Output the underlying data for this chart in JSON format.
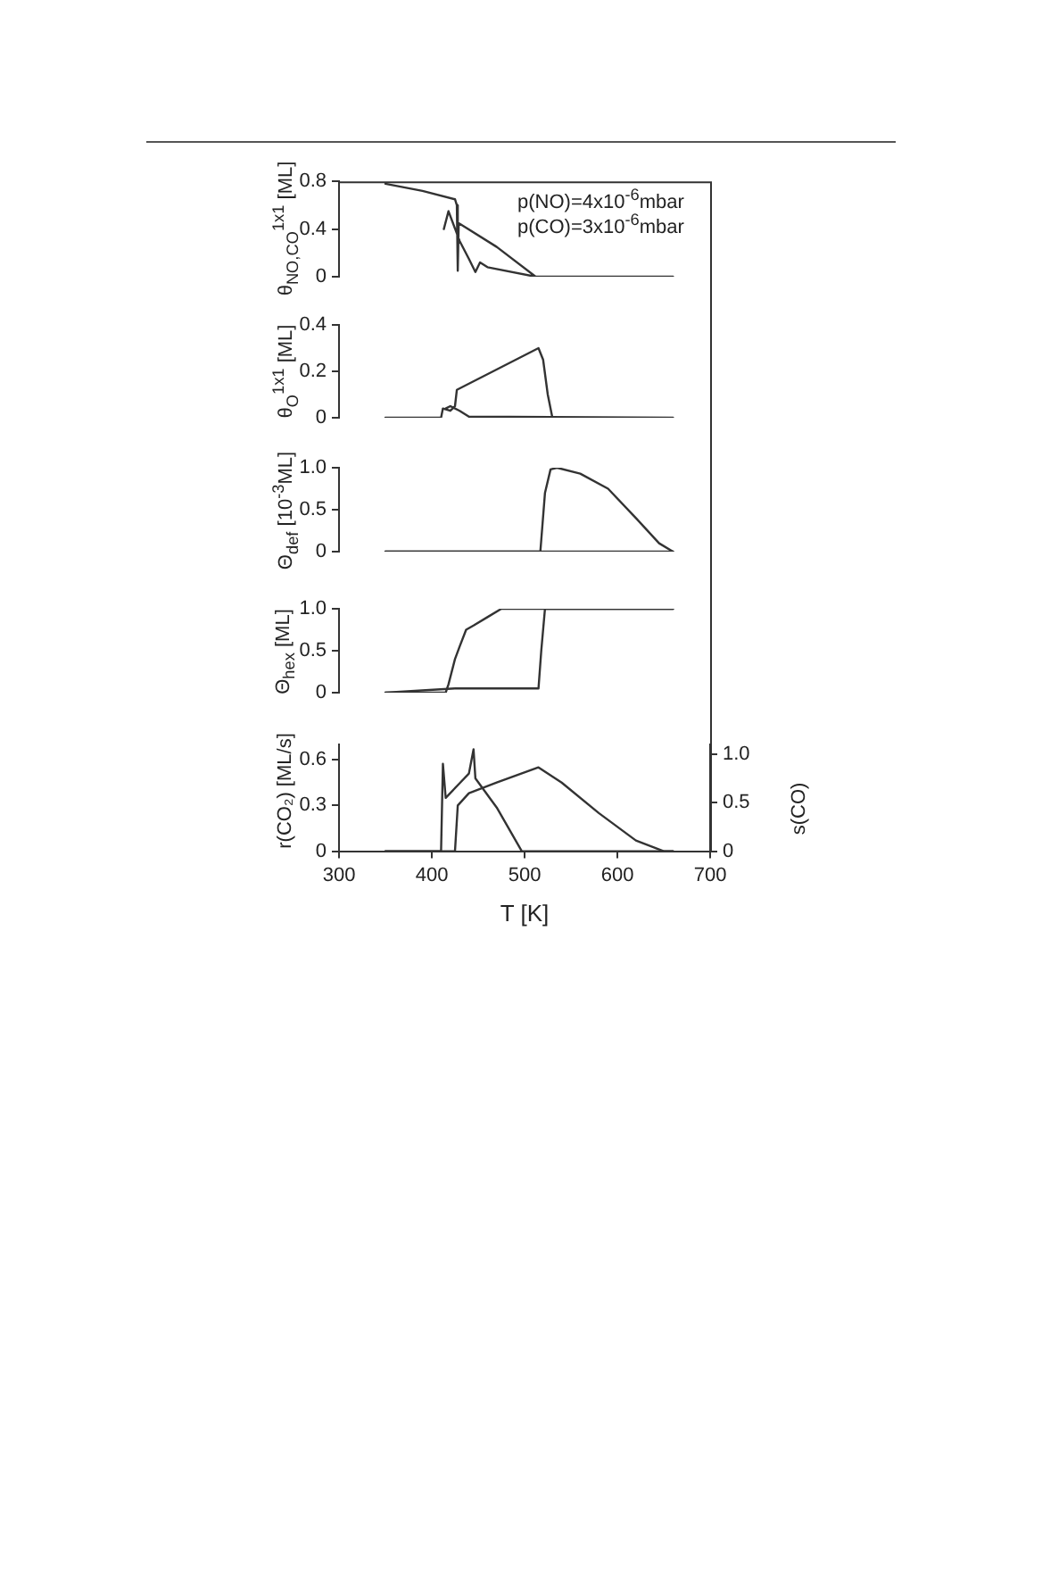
{
  "chart_data": [
    {
      "type": "line",
      "ylabel": "θ$_{NO,CO}$$^{1x1}$ [ML]",
      "xlim": [
        300,
        700
      ],
      "xticks": [
        300,
        400,
        500,
        600,
        700
      ],
      "ylim": [
        0,
        0.8
      ],
      "yticks": [
        0,
        0.4,
        0.8
      ],
      "tick_labels": "y",
      "grid": false,
      "legend": false,
      "marker": "none",
      "annotations": [
        "p(NO)=4x10$^{-6}$mbar",
        "p(CO)=3x10$^{-6}$mbar"
      ],
      "series": [
        {
          "color": "#333333",
          "x": [
            350,
            390,
            425,
            427,
            428,
            429,
            470,
            512,
            660,
            512,
            460,
            452,
            447,
            440,
            430,
            418,
            413
          ],
          "values": [
            0.78,
            0.72,
            0.65,
            0.6,
            0.05,
            0.45,
            0.25,
            0,
            0,
            0,
            0.08,
            0.12,
            0.04,
            0.15,
            0.3,
            0.55,
            0.4
          ]
        }
      ]
    },
    {
      "type": "line",
      "ylabel": "θ$_{O}$$^{1x1}$ [ML]",
      "xlim": [
        300,
        700
      ],
      "xticks": [
        300,
        400,
        500,
        600,
        700
      ],
      "ylim": [
        0,
        0.4
      ],
      "yticks": [
        0,
        0.2,
        0.4
      ],
      "tick_labels": "y",
      "grid": false,
      "legend": false,
      "marker": "none",
      "series": [
        {
          "color": "#333333",
          "x": [
            350,
            410,
            412,
            420,
            425,
            427,
            515,
            520,
            525,
            530,
            660,
            440,
            430,
            420,
            415
          ],
          "values": [
            0,
            0,
            0.04,
            0.03,
            0.05,
            0.12,
            0.3,
            0.25,
            0.1,
            0,
            0,
            0.005,
            0.03,
            0.05,
            0.04
          ]
        }
      ]
    },
    {
      "type": "line",
      "ylabel": "Θ$_{def}$ [10$^{-3}$ML]",
      "xlim": [
        300,
        700
      ],
      "xticks": [
        300,
        400,
        500,
        600,
        700
      ],
      "ylim": [
        0,
        1
      ],
      "yticks": [
        0,
        0.5,
        {
          "value": 1,
          "label": "1.0"
        }
      ],
      "tick_labels": "y",
      "grid": false,
      "legend": false,
      "marker": "none",
      "series": [
        {
          "color": "#333333",
          "x": [
            350,
            517,
            522,
            528,
            535,
            560,
            590,
            620,
            645,
            660
          ],
          "values": [
            0,
            0,
            0.7,
            0.98,
            1,
            0.93,
            0.75,
            0.4,
            0.1,
            0
          ]
        },
        {
          "color": "#333333",
          "x": [
            350,
            660
          ],
          "values": [
            0,
            0
          ]
        }
      ]
    },
    {
      "type": "line",
      "ylabel": "Θ$_{hex}$ [ML]",
      "xlim": [
        300,
        700
      ],
      "xticks": [
        300,
        400,
        500,
        600,
        700
      ],
      "ylim": [
        0,
        1
      ],
      "yticks": [
        0,
        0.5,
        {
          "value": 1,
          "label": "1.0"
        }
      ],
      "tick_labels": "y",
      "grid": false,
      "legend": false,
      "marker": "none",
      "series": [
        {
          "color": "#333333",
          "x": [
            350,
            425,
            515,
            518,
            522,
            660
          ],
          "values": [
            0,
            0.05,
            0.05,
            0.5,
            1,
            1
          ]
        },
        {
          "color": "#333333",
          "x": [
            350,
            415,
            418,
            425,
            430,
            437,
            445,
            460,
            475,
            660
          ],
          "values": [
            0,
            0,
            0.1,
            0.4,
            0.55,
            0.75,
            0.8,
            0.9,
            1,
            1
          ]
        }
      ]
    },
    {
      "type": "line",
      "ylabel": "r(CO₂) [ML/s]",
      "y2label": "s(CO)",
      "xlabel": "T [K]",
      "xlim": [
        300,
        700
      ],
      "xticks": [
        300,
        400,
        500,
        600,
        700
      ],
      "ylim": [
        0,
        0.7
      ],
      "yticks": [
        0,
        0.3,
        0.6
      ],
      "y2lim": [
        0,
        1.1
      ],
      "y2ticks": [
        0,
        0.5,
        {
          "value": 1,
          "label": "1.0"
        }
      ],
      "grid": false,
      "legend": false,
      "marker": "none",
      "series": [
        {
          "color": "#333333",
          "x": [
            350,
            425,
            428,
            440,
            470,
            515,
            540,
            580,
            620,
            650,
            660
          ],
          "values": [
            0,
            0,
            0.3,
            0.38,
            0.45,
            0.55,
            0.45,
            0.25,
            0.07,
            0,
            0
          ]
        },
        {
          "color": "#333333",
          "axis": "y2",
          "x": [
            660,
            497,
            470,
            447,
            445,
            440,
            430,
            415,
            412,
            410,
            350
          ],
          "values": [
            0,
            0,
            0.45,
            0.75,
            1.05,
            0.8,
            0.7,
            0.55,
            0.9,
            0,
            0
          ]
        }
      ]
    }
  ]
}
